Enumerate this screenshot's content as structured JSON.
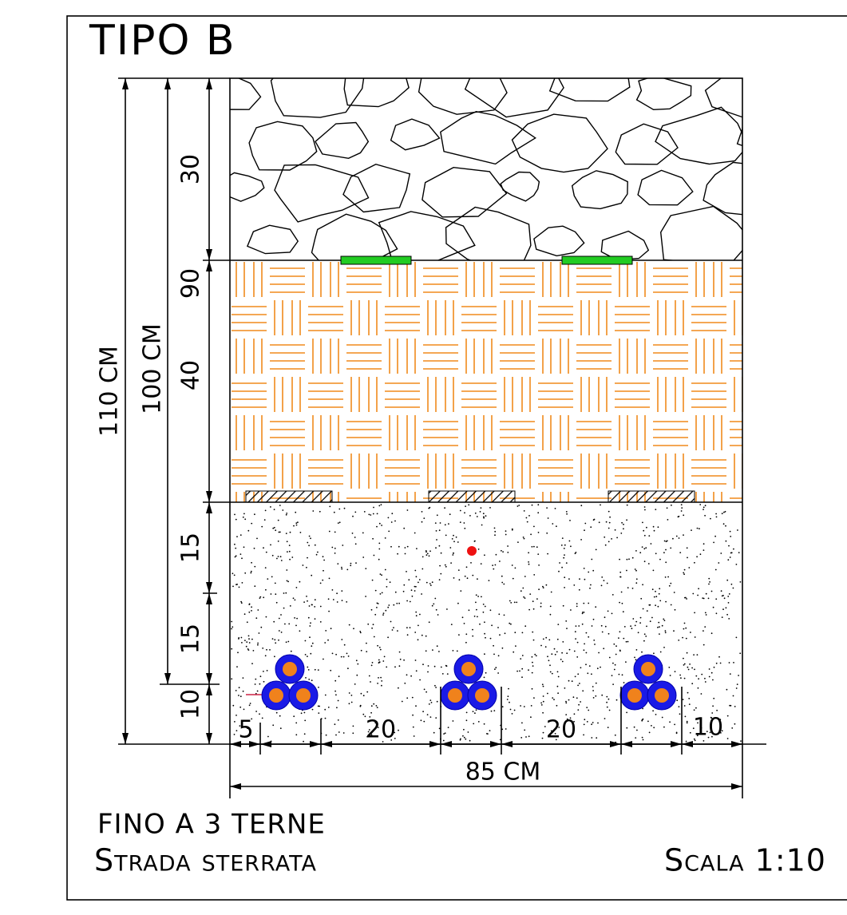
{
  "title": "TIPO B",
  "dimensions": {
    "vertical": [
      30,
      90,
      40,
      15,
      15,
      10
    ],
    "total_depth": "110 CM",
    "cable_depth": "100 CM",
    "horizontal": [
      5,
      20,
      20,
      10
    ],
    "total_width": "85 CM"
  },
  "notes": [
    "FINO A 3 TERNE",
    "Strada sterrata"
  ],
  "scale": "Scala 1:10"
}
